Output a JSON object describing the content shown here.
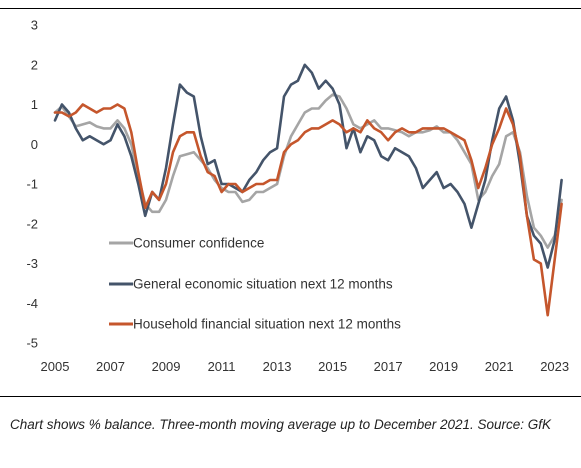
{
  "caption": "Chart shows % balance. Three-month moving average up to December 2021. Source: GfK",
  "chart_data": {
    "type": "line",
    "title": "",
    "xlabel": "",
    "ylabel": "",
    "xlim": [
      2005,
      2023.3
    ],
    "ylim": [
      -5,
      3
    ],
    "yticks": [
      3,
      2,
      1,
      0,
      -1,
      -2,
      -3,
      -4,
      -5
    ],
    "xticks": [
      2005,
      2007,
      2009,
      2011,
      2013,
      2015,
      2017,
      2019,
      2021,
      2023
    ],
    "grid": false,
    "legend_position": "inside-bottom-left",
    "series": [
      {
        "name": "Consumer confidence",
        "color": "#a5a5a5",
        "x": [
          2005.0,
          2005.25,
          2005.5,
          2005.75,
          2006.0,
          2006.25,
          2006.5,
          2006.75,
          2007.0,
          2007.25,
          2007.5,
          2007.75,
          2008.0,
          2008.25,
          2008.5,
          2008.75,
          2009.0,
          2009.25,
          2009.5,
          2009.75,
          2010.0,
          2010.25,
          2010.5,
          2010.75,
          2011.0,
          2011.25,
          2011.5,
          2011.75,
          2012.0,
          2012.25,
          2012.5,
          2012.75,
          2013.0,
          2013.25,
          2013.5,
          2013.75,
          2014.0,
          2014.25,
          2014.5,
          2014.75,
          2015.0,
          2015.25,
          2015.5,
          2015.75,
          2016.0,
          2016.25,
          2016.5,
          2016.75,
          2017.0,
          2017.25,
          2017.5,
          2017.75,
          2018.0,
          2018.25,
          2018.5,
          2018.75,
          2019.0,
          2019.25,
          2019.5,
          2019.75,
          2020.0,
          2020.25,
          2020.5,
          2020.75,
          2021.0,
          2021.25,
          2021.5,
          2021.75,
          2022.0,
          2022.25,
          2022.5,
          2022.75,
          2023.0,
          2023.25
        ],
        "values": [
          0.8,
          0.95,
          0.7,
          0.45,
          0.5,
          0.55,
          0.45,
          0.4,
          0.4,
          0.6,
          0.4,
          0.0,
          -0.8,
          -1.5,
          -1.7,
          -1.7,
          -1.4,
          -0.8,
          -0.3,
          -0.25,
          -0.2,
          -0.4,
          -0.6,
          -0.9,
          -1.1,
          -1.2,
          -1.2,
          -1.45,
          -1.4,
          -1.2,
          -1.2,
          -1.1,
          -1.0,
          -0.3,
          0.2,
          0.5,
          0.8,
          0.9,
          0.9,
          1.1,
          1.25,
          1.2,
          0.9,
          0.5,
          0.4,
          0.5,
          0.6,
          0.4,
          0.4,
          0.35,
          0.3,
          0.2,
          0.3,
          0.3,
          0.35,
          0.45,
          0.3,
          0.3,
          0.1,
          -0.2,
          -0.5,
          -1.4,
          -1.2,
          -0.8,
          -0.5,
          0.2,
          0.3,
          -0.2,
          -1.3,
          -2.1,
          -2.3,
          -2.6,
          -2.3,
          -1.4
        ]
      },
      {
        "name": "General economic situation next 12 months",
        "color": "#44546a",
        "x": [
          2005.0,
          2005.25,
          2005.5,
          2005.75,
          2006.0,
          2006.25,
          2006.5,
          2006.75,
          2007.0,
          2007.25,
          2007.5,
          2007.75,
          2008.0,
          2008.25,
          2008.5,
          2008.75,
          2009.0,
          2009.25,
          2009.5,
          2009.75,
          2010.0,
          2010.25,
          2010.5,
          2010.75,
          2011.0,
          2011.25,
          2011.5,
          2011.75,
          2012.0,
          2012.25,
          2012.5,
          2012.75,
          2013.0,
          2013.25,
          2013.5,
          2013.75,
          2014.0,
          2014.25,
          2014.5,
          2014.75,
          2015.0,
          2015.25,
          2015.5,
          2015.75,
          2016.0,
          2016.25,
          2016.5,
          2016.75,
          2017.0,
          2017.25,
          2017.5,
          2017.75,
          2018.0,
          2018.25,
          2018.5,
          2018.75,
          2019.0,
          2019.25,
          2019.5,
          2019.75,
          2020.0,
          2020.25,
          2020.5,
          2020.75,
          2021.0,
          2021.25,
          2021.5,
          2021.75,
          2022.0,
          2022.25,
          2022.5,
          2022.75,
          2023.0,
          2023.25
        ],
        "values": [
          0.6,
          1.0,
          0.8,
          0.4,
          0.1,
          0.2,
          0.1,
          0.0,
          0.1,
          0.5,
          0.2,
          -0.3,
          -1.0,
          -1.8,
          -1.2,
          -1.4,
          -0.6,
          0.5,
          1.5,
          1.3,
          1.2,
          0.2,
          -0.5,
          -0.4,
          -1.0,
          -1.0,
          -1.1,
          -1.2,
          -0.9,
          -0.7,
          -0.4,
          -0.2,
          -0.1,
          1.2,
          1.5,
          1.6,
          2.0,
          1.8,
          1.4,
          1.6,
          1.4,
          1.0,
          -0.1,
          0.4,
          -0.2,
          0.2,
          0.1,
          -0.3,
          -0.4,
          -0.1,
          -0.2,
          -0.3,
          -0.6,
          -1.1,
          -0.9,
          -0.7,
          -1.1,
          -1.0,
          -1.2,
          -1.5,
          -2.1,
          -1.5,
          -0.9,
          0.1,
          0.9,
          1.2,
          0.6,
          -0.5,
          -1.8,
          -2.3,
          -2.5,
          -3.1,
          -2.4,
          -0.9
        ]
      },
      {
        "name": "Household financial situation next 12 months",
        "color": "#c5562c",
        "x": [
          2005.0,
          2005.25,
          2005.5,
          2005.75,
          2006.0,
          2006.25,
          2006.5,
          2006.75,
          2007.0,
          2007.25,
          2007.5,
          2007.75,
          2008.0,
          2008.25,
          2008.5,
          2008.75,
          2009.0,
          2009.25,
          2009.5,
          2009.75,
          2010.0,
          2010.25,
          2010.5,
          2010.75,
          2011.0,
          2011.25,
          2011.5,
          2011.75,
          2012.0,
          2012.25,
          2012.5,
          2012.75,
          2013.0,
          2013.25,
          2013.5,
          2013.75,
          2014.0,
          2014.25,
          2014.5,
          2014.75,
          2015.0,
          2015.25,
          2015.5,
          2015.75,
          2016.0,
          2016.25,
          2016.5,
          2016.75,
          2017.0,
          2017.25,
          2017.5,
          2017.75,
          2018.0,
          2018.25,
          2018.5,
          2018.75,
          2019.0,
          2019.25,
          2019.5,
          2019.75,
          2020.0,
          2020.25,
          2020.5,
          2020.75,
          2021.0,
          2021.25,
          2021.5,
          2021.75,
          2022.0,
          2022.25,
          2022.5,
          2022.75,
          2023.0,
          2023.25
        ],
        "values": [
          0.8,
          0.8,
          0.7,
          0.8,
          1.0,
          0.9,
          0.8,
          0.9,
          0.9,
          1.0,
          0.9,
          0.3,
          -0.7,
          -1.6,
          -1.2,
          -1.4,
          -1.0,
          -0.2,
          0.2,
          0.3,
          0.3,
          -0.3,
          -0.7,
          -0.8,
          -1.2,
          -1.0,
          -1.0,
          -1.2,
          -1.1,
          -1.0,
          -1.0,
          -0.9,
          -0.9,
          -0.2,
          0.0,
          0.1,
          0.3,
          0.4,
          0.4,
          0.5,
          0.6,
          0.5,
          0.3,
          0.4,
          0.3,
          0.6,
          0.4,
          0.3,
          0.1,
          0.3,
          0.4,
          0.3,
          0.3,
          0.4,
          0.4,
          0.4,
          0.4,
          0.3,
          0.2,
          0.1,
          -0.4,
          -1.1,
          -0.6,
          0.0,
          0.4,
          0.9,
          0.5,
          -0.3,
          -1.8,
          -2.9,
          -3.0,
          -4.3,
          -2.9,
          -1.5
        ]
      }
    ]
  }
}
